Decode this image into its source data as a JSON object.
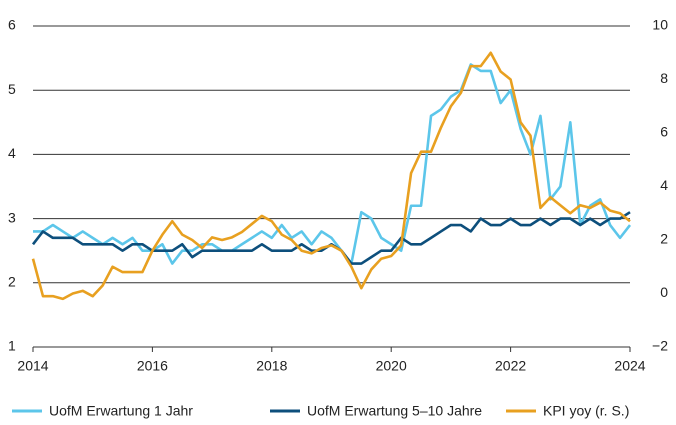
{
  "chart_data": {
    "type": "line",
    "xlim": [
      2014,
      2024
    ],
    "xticks": [
      2014,
      2016,
      2018,
      2020,
      2022,
      2024
    ],
    "ylim": [
      1,
      6
    ],
    "yticks": [
      1,
      2,
      3,
      4,
      5,
      6
    ],
    "y2lim": [
      -2,
      10
    ],
    "y2ticks": [
      {
        "value": -2,
        "label": "−2"
      },
      0,
      2,
      4,
      6,
      8,
      10
    ],
    "grid": true,
    "legend": "bottom",
    "x": [
      2014,
      2014.167,
      2014.333,
      2014.5,
      2014.667,
      2014.833,
      2015,
      2015.167,
      2015.333,
      2015.5,
      2015.667,
      2015.833,
      2016,
      2016.167,
      2016.333,
      2016.5,
      2016.667,
      2016.833,
      2017,
      2017.167,
      2017.333,
      2017.5,
      2017.667,
      2017.833,
      2018,
      2018.167,
      2018.333,
      2018.5,
      2018.667,
      2018.833,
      2019,
      2019.167,
      2019.333,
      2019.5,
      2019.667,
      2019.833,
      2020,
      2020.167,
      2020.333,
      2020.5,
      2020.667,
      2020.833,
      2021,
      2021.167,
      2021.333,
      2021.5,
      2021.667,
      2021.833,
      2022,
      2022.167,
      2022.333,
      2022.5,
      2022.667,
      2022.833,
      2023,
      2023.167,
      2023.333,
      2023.5,
      2023.667,
      2023.833,
      2024
    ],
    "series": [
      {
        "name": "UofM Erwartung 1 Jahr",
        "color": "#5cc6ea",
        "values": [
          2.8,
          2.8,
          2.9,
          2.8,
          2.7,
          2.8,
          2.7,
          2.6,
          2.7,
          2.6,
          2.7,
          2.5,
          2.5,
          2.6,
          2.3,
          2.5,
          2.5,
          2.6,
          2.6,
          2.5,
          2.5,
          2.6,
          2.7,
          2.8,
          2.7,
          2.9,
          2.7,
          2.8,
          2.6,
          2.8,
          2.7,
          2.5,
          2.3,
          3.1,
          3.0,
          2.7,
          2.6,
          2.5,
          3.2,
          3.2,
          4.6,
          4.7,
          4.9,
          5.0,
          5.4,
          5.3,
          5.3,
          4.8,
          5.0,
          4.4,
          4.0,
          4.6,
          3.3,
          3.5,
          4.5,
          2.9,
          3.2,
          3.3,
          2.9,
          2.7,
          2.9
        ]
      },
      {
        "name": "UofM Erwartung 5–10 Jahre",
        "color": "#0d4f7c",
        "values": [
          2.6,
          2.8,
          2.7,
          2.7,
          2.7,
          2.6,
          2.6,
          2.6,
          2.6,
          2.5,
          2.6,
          2.6,
          2.5,
          2.5,
          2.5,
          2.6,
          2.4,
          2.5,
          2.5,
          2.5,
          2.5,
          2.5,
          2.5,
          2.6,
          2.5,
          2.5,
          2.5,
          2.6,
          2.5,
          2.5,
          2.6,
          2.5,
          2.3,
          2.3,
          2.4,
          2.5,
          2.5,
          2.7,
          2.6,
          2.6,
          2.7,
          2.8,
          2.9,
          2.9,
          2.8,
          3.0,
          2.9,
          2.9,
          3.0,
          2.9,
          2.9,
          3.0,
          2.9,
          3.0,
          3.0,
          2.9,
          3.0,
          2.9,
          3.0,
          3.0,
          3.1
        ]
      },
      {
        "name": "KPI yoy (r. S.)",
        "color": "#e8a020",
        "axis": "y2",
        "values": [
          1.3,
          -0.1,
          -0.1,
          -0.2,
          0.0,
          0.1,
          -0.1,
          0.3,
          1.0,
          0.8,
          0.8,
          0.8,
          1.6,
          2.2,
          2.7,
          2.2,
          2.0,
          1.7,
          2.1,
          2.0,
          2.1,
          2.3,
          2.6,
          2.9,
          2.7,
          2.2,
          2.0,
          1.6,
          1.5,
          1.7,
          1.8,
          1.6,
          1.0,
          0.2,
          0.9,
          1.3,
          1.4,
          1.8,
          4.5,
          5.3,
          5.3,
          6.2,
          7.0,
          7.5,
          8.5,
          8.5,
          9.0,
          8.3,
          8.0,
          6.4,
          5.9,
          3.2,
          3.6,
          3.3,
          3.0,
          3.3,
          3.2,
          3.4,
          3.1,
          3.0,
          2.7
        ]
      }
    ]
  }
}
